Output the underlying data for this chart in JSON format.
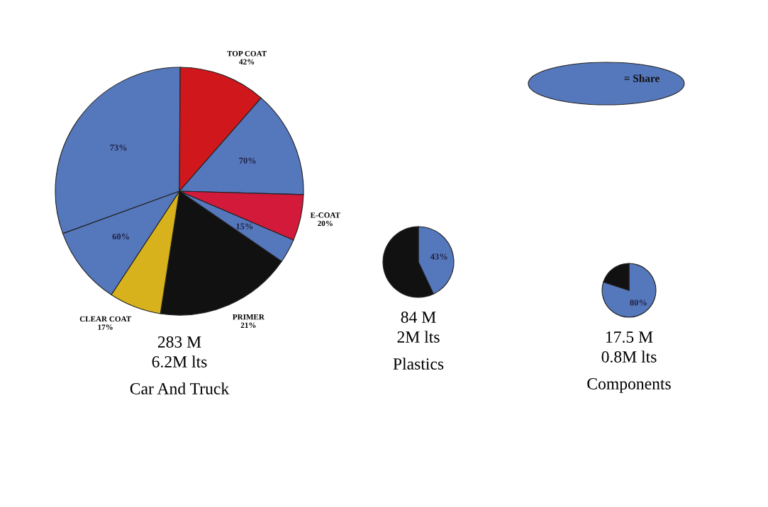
{
  "chart_data": [
    {
      "type": "pie",
      "categories": [
        "73%",
        "TOP COAT\n42%",
        "70%",
        "E-COAT\n20%",
        "15%",
        "PRIMER\n21%",
        "CLEAR COAT\n17%",
        "60%"
      ],
      "values": [
        30.66,
        11.34,
        14,
        6,
        3.15,
        17.85,
        6.8,
        10.2
      ],
      "colors": [
        "#5577bb",
        "#d0181c",
        "#5577bb",
        "#d41a3a",
        "#5577bb",
        "#111111",
        "#d8b21c",
        "#5577bb"
      ],
      "title": "Car And Truck",
      "annotations": [
        "283 M",
        "6.2M lts"
      ],
      "legend_title": "= Share"
    },
    {
      "type": "pie",
      "categories": [
        null,
        null
      ],
      "values": [
        43,
        57
      ],
      "colors": [
        "#5577bb",
        "#111111"
      ],
      "value_labels": [
        "43%",
        null
      ],
      "title": "Plastics",
      "annotations": [
        "84 M",
        "2M lts"
      ]
    },
    {
      "type": "pie",
      "categories": [
        null,
        null
      ],
      "values": [
        80,
        20
      ],
      "colors": [
        "#5577bb",
        "#111111"
      ],
      "value_labels": [
        "80%",
        null
      ],
      "title": "Components",
      "annotations": [
        "17.5 M",
        "0.8M lts"
      ]
    }
  ]
}
